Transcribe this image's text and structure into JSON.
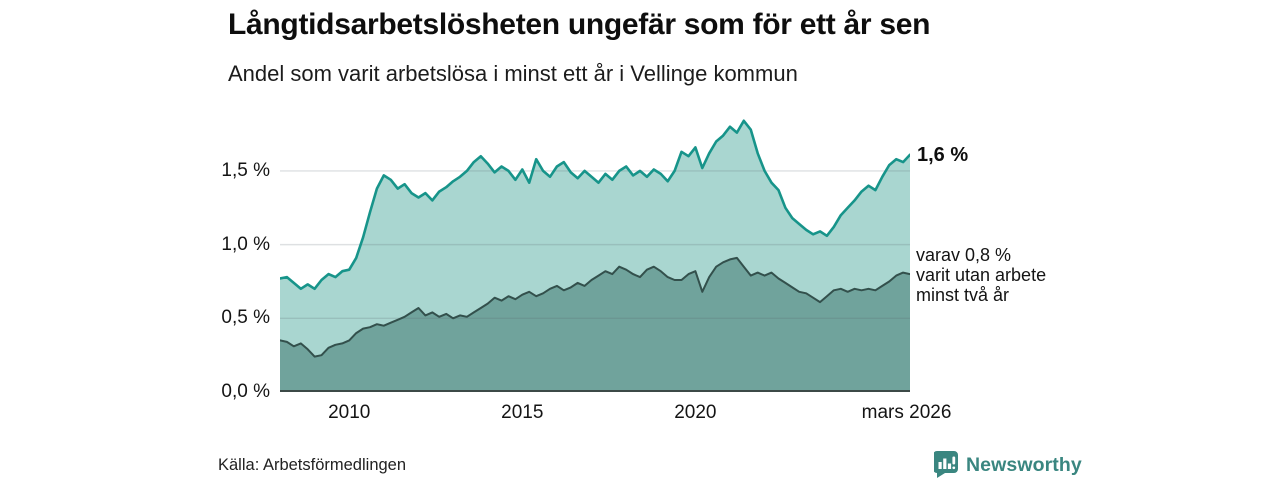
{
  "header": {
    "title": "Långtidsarbetslösheten ungefär som för ett år sen",
    "subtitle": "Andel som varit arbetslösa i minst ett år i Vellinge kommun"
  },
  "chart_data": {
    "type": "area",
    "title": "Långtidsarbetslösheten ungefär som för ett år sen",
    "subtitle": "Andel som varit arbetslösa i minst ett år i Vellinge kommun",
    "x_start": 2008.0,
    "x_end": 2026.2,
    "x_step": 0.2,
    "x_unit": "year (monthly series, ends mars 2026)",
    "y_unit": "%",
    "ylim": [
      0,
      1.9
    ],
    "grid": true,
    "yticks": [
      {
        "value": 1.5,
        "label": "1,5 %"
      },
      {
        "value": 1.0,
        "label": "1,0 %"
      },
      {
        "value": 0.5,
        "label": "0,5 %"
      },
      {
        "value": 0.0,
        "label": "0,0 %"
      }
    ],
    "xticks": [
      {
        "value": 2010,
        "label": "2010"
      },
      {
        "value": 2015,
        "label": "2015"
      },
      {
        "value": 2020,
        "label": "2020"
      },
      {
        "value": 2026.1,
        "label": "mars 2026"
      }
    ],
    "series": [
      {
        "name": "Andel arbetslösa minst ett år",
        "line_color": "#17948a",
        "fill_color": "#a9d6d0",
        "line_width": 2.6,
        "values": [
          0.77,
          0.78,
          0.74,
          0.7,
          0.73,
          0.7,
          0.76,
          0.8,
          0.78,
          0.82,
          0.83,
          0.91,
          1.05,
          1.22,
          1.38,
          1.47,
          1.44,
          1.38,
          1.41,
          1.35,
          1.32,
          1.35,
          1.3,
          1.36,
          1.39,
          1.43,
          1.46,
          1.5,
          1.56,
          1.6,
          1.55,
          1.49,
          1.53,
          1.5,
          1.44,
          1.51,
          1.42,
          1.58,
          1.5,
          1.46,
          1.53,
          1.56,
          1.49,
          1.45,
          1.5,
          1.46,
          1.42,
          1.48,
          1.44,
          1.5,
          1.53,
          1.47,
          1.5,
          1.46,
          1.51,
          1.48,
          1.43,
          1.5,
          1.63,
          1.6,
          1.66,
          1.52,
          1.62,
          1.7,
          1.74,
          1.8,
          1.76,
          1.84,
          1.78,
          1.62,
          1.5,
          1.42,
          1.37,
          1.25,
          1.18,
          1.14,
          1.1,
          1.07,
          1.09,
          1.06,
          1.12,
          1.2,
          1.25,
          1.3,
          1.36,
          1.4,
          1.37,
          1.46,
          1.54,
          1.58,
          1.56,
          1.61
        ],
        "end_value_label": "1,6 %"
      },
      {
        "name": "varav utan arbete minst två år",
        "line_color": "#33504c",
        "fill_color": "#70a39c",
        "line_width": 2,
        "values": [
          0.35,
          0.34,
          0.31,
          0.33,
          0.29,
          0.24,
          0.25,
          0.3,
          0.32,
          0.33,
          0.35,
          0.4,
          0.43,
          0.44,
          0.46,
          0.45,
          0.47,
          0.49,
          0.51,
          0.54,
          0.57,
          0.52,
          0.54,
          0.51,
          0.53,
          0.5,
          0.52,
          0.51,
          0.54,
          0.57,
          0.6,
          0.64,
          0.62,
          0.65,
          0.63,
          0.66,
          0.68,
          0.65,
          0.67,
          0.7,
          0.72,
          0.69,
          0.71,
          0.74,
          0.72,
          0.76,
          0.79,
          0.82,
          0.8,
          0.85,
          0.83,
          0.8,
          0.78,
          0.83,
          0.85,
          0.82,
          0.78,
          0.76,
          0.76,
          0.8,
          0.82,
          0.68,
          0.78,
          0.85,
          0.88,
          0.9,
          0.91,
          0.85,
          0.79,
          0.81,
          0.79,
          0.81,
          0.77,
          0.74,
          0.71,
          0.68,
          0.67,
          0.64,
          0.61,
          0.65,
          0.69,
          0.7,
          0.68,
          0.7,
          0.69,
          0.7,
          0.69,
          0.72,
          0.75,
          0.79,
          0.81,
          0.8
        ],
        "end_value_label": "varav 0,8 %"
      }
    ],
    "annotations": [
      {
        "text": "1,6 %"
      },
      {
        "lines": [
          "varav 0,8 %",
          "varit utan arbete",
          "minst två år"
        ]
      }
    ]
  },
  "footer": {
    "source": "Källa: Arbetsförmedlingen",
    "brand": "Newsworthy"
  },
  "colors": {
    "accent_line": "#17948a",
    "light_fill": "#a9d6d0",
    "dark_fill": "#70a39c",
    "dark_line": "#33504c",
    "grid": "rgba(90,100,110,0.20)",
    "baseline": "#3c4a47",
    "brand_teal": "#3a8680"
  }
}
